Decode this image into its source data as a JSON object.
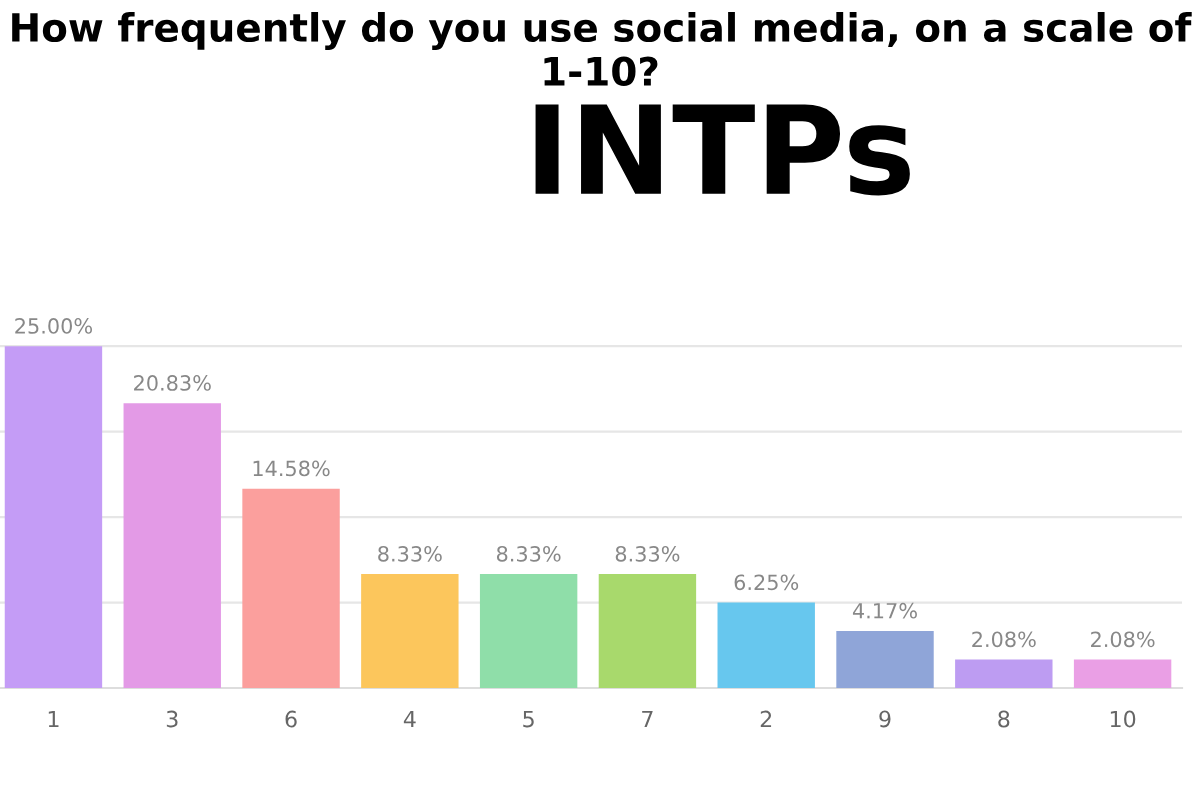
{
  "chart_data": {
    "type": "bar",
    "title": "How frequently do you use social media, on a scale of 1-10?",
    "subtitle": "INTPs",
    "categories": [
      "1",
      "3",
      "6",
      "4",
      "5",
      "7",
      "2",
      "9",
      "8",
      "10"
    ],
    "values": [
      25.0,
      20.83,
      14.58,
      8.33,
      8.33,
      8.33,
      6.25,
      4.17,
      2.08,
      2.08
    ],
    "colors": [
      "#c49cf6",
      "#e39ae6",
      "#fb9f9d",
      "#fcc65c",
      "#8fdea9",
      "#a8d96c",
      "#67c7ee",
      "#8fa5d8",
      "#bd9cf2",
      "#ea9fe5"
    ],
    "value_labels": [
      "25.00%",
      "20.83%",
      "14.58%",
      "8.33%",
      "8.33%",
      "8.33%",
      "6.25%",
      "4.17%",
      "2.08%",
      "2.08%"
    ],
    "yticks": [
      {
        "value": 0,
        "label": null
      },
      {
        "value": 6.25,
        "label": null
      },
      {
        "value": 12.5,
        "label": null
      },
      {
        "value": 18.75,
        "label": null
      },
      {
        "value": 25,
        "label": null
      }
    ],
    "grid": "y",
    "tick_labels": "x"
  }
}
